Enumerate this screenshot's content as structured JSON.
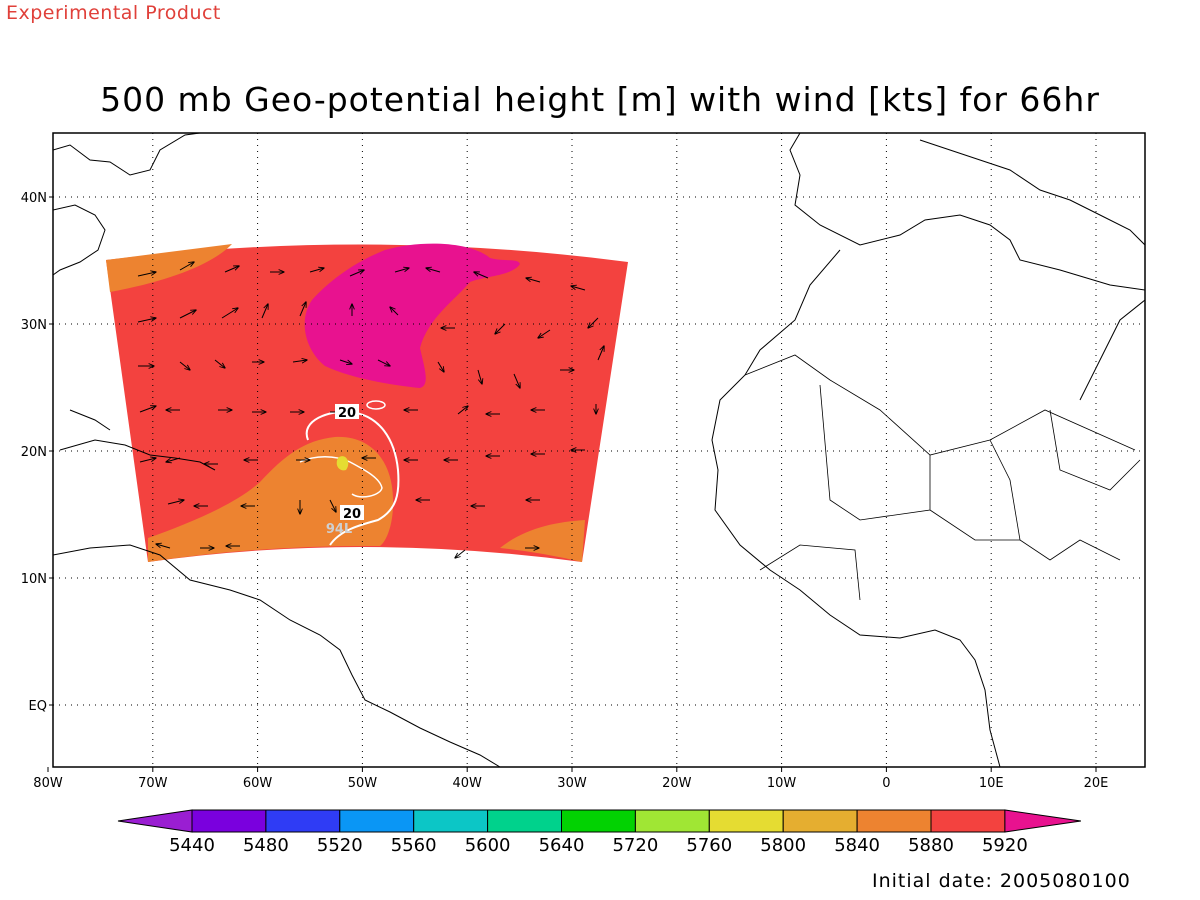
{
  "header": {
    "experimental_label": "Experimental Product",
    "title": "500 mb Geo-potential height [m] with wind [kts] for 66hr",
    "initial_date": "Initial date: 2005080100"
  },
  "map": {
    "lat_labels": [
      "40N",
      "30N",
      "20N",
      "10N",
      "EQ"
    ],
    "lon_labels": [
      "80W",
      "70W",
      "60W",
      "50W",
      "40W",
      "30W",
      "20W",
      "10W",
      "0",
      "10E",
      "20E"
    ],
    "contour_labels": [
      "20",
      "20",
      "94L"
    ],
    "colors": {
      "fill_5880": "#ed8330",
      "fill_5920": "#f3423f",
      "fill_above": "#e8128f",
      "land_outline": "#000000",
      "contour": "#ffffff"
    }
  },
  "colorbar": {
    "labels": [
      "5440",
      "5480",
      "5520",
      "5560",
      "5600",
      "5640",
      "5720",
      "5760",
      "5800",
      "5840",
      "5880",
      "5920"
    ],
    "colors": [
      "#9a1ed2",
      "#7a00de",
      "#2f3cf5",
      "#0a96f5",
      "#0cc6c6",
      "#00d28c",
      "#02d202",
      "#a0e634",
      "#e5dc32",
      "#e5ae30",
      "#ed8330",
      "#f3423f",
      "#e8128f"
    ]
  }
}
